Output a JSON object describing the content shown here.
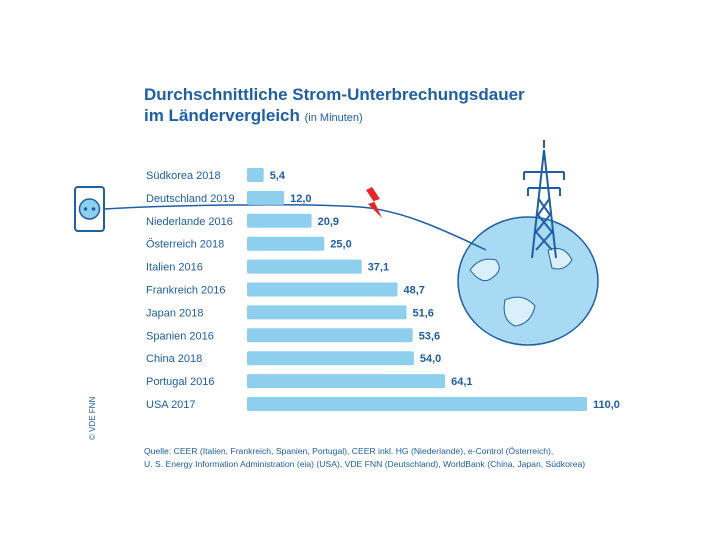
{
  "title_line1": "Durchschnittliche Strom-Unterbrechungsdauer",
  "title_line2": "im Ländervergleich",
  "title_unit": "(in Minuten)",
  "source_line1": "Quelle: CEER (Italien, Frankreich, Spanien, Portugal), CEER inkl. HG (Niederlande), e-Control (Österreich),",
  "source_line2": "U. S. Energy Information Administration (eia) (USA), VDE FNN (Deutschland), WorldBank (China, Japan, Südkorea)",
  "copyright": "© VDE FNN",
  "colors": {
    "bar": "#8fcfee",
    "text": "#1e5fa6",
    "bolt": "#e8262a"
  },
  "chart_data": {
    "type": "bar",
    "orientation": "horizontal",
    "title": "Durchschnittliche Strom-Unterbrechungsdauer im Ländervergleich",
    "unit": "(in Minuten)",
    "categories": [
      "Südkorea 2018",
      "Deutschland 2019",
      "Niederlande 2016",
      "Österreich 2018",
      "Italien 2016",
      "Frankreich 2016",
      "Japan 2018",
      "Spanien 2016",
      "China 2018",
      "Portugal 2016",
      "USA 2017"
    ],
    "values": [
      5.4,
      12.0,
      20.9,
      25.0,
      37.1,
      48.7,
      51.6,
      53.6,
      54.0,
      64.1,
      110.0
    ],
    "value_labels": [
      "5,4",
      "12,0",
      "20,9",
      "25,0",
      "37,1",
      "48,7",
      "51,6",
      "53,6",
      "54,0",
      "64,1",
      "110,0"
    ],
    "xlim": [
      0,
      110
    ],
    "grid": false,
    "legend": "none"
  }
}
